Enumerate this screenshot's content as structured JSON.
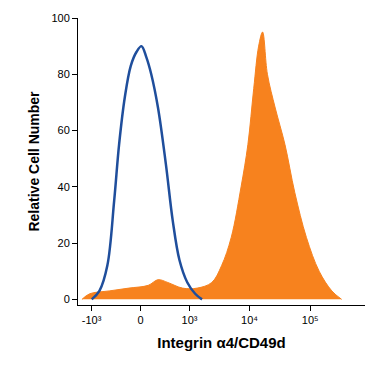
{
  "chart_data": {
    "type": "area",
    "x_label": "Integrin α4/CD49d",
    "y_label": "Relative Cell Number",
    "xlim": [
      -1700,
      800000
    ],
    "ylim": [
      -2,
      100
    ],
    "xticks": [
      {
        "value": -1000,
        "label": "-10³"
      },
      0,
      {
        "value": 1000,
        "label": "10³"
      },
      {
        "value": 10000,
        "label": "10⁴"
      },
      {
        "value": 100000,
        "label": "10⁵"
      }
    ],
    "yticks": [
      0,
      20,
      40,
      60,
      80,
      100
    ],
    "grid": false,
    "series": [
      {
        "type": "area",
        "color": "#f7821e",
        "x": [
          -1459,
          -1075,
          -477,
          -147,
          96,
          229,
          394,
          755,
          1354,
          2378,
          3460,
          4990,
          7260,
          9400,
          11740,
          14140,
          16400,
          19740,
          26560,
          38400,
          55700,
          86700,
          140500,
          227500,
          329600
        ],
        "values": [
          0,
          2,
          3,
          4,
          5,
          7,
          6,
          4,
          4,
          6,
          12,
          22,
          40,
          55,
          75,
          90,
          95,
          80,
          68,
          55,
          38,
          22,
          10,
          3,
          0
        ]
      },
      {
        "type": "line",
        "color": "#1f4e9c",
        "x": [
          -993,
          -727,
          -518,
          -376,
          -290,
          -201,
          -121,
          -48,
          12,
          72,
          134,
          229,
          358,
          496,
          664,
          918,
          1252,
          1636
        ],
        "values": [
          0,
          3,
          12,
          35,
          55,
          72,
          83,
          88,
          90,
          86,
          80,
          68,
          48,
          28,
          14,
          6,
          2,
          0
        ]
      }
    ]
  }
}
